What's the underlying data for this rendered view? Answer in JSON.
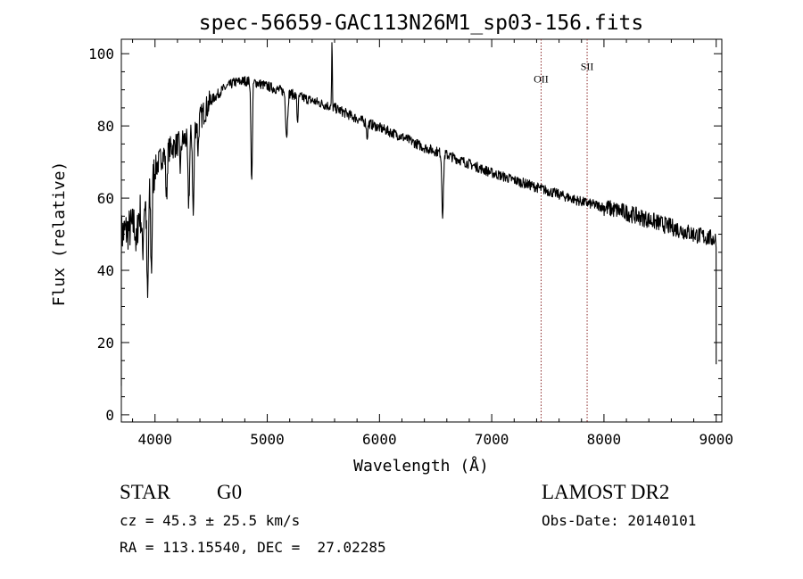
{
  "chart_data": {
    "type": "line",
    "title": "spec-56659-GAC113N26M1_sp03-156.fits",
    "xlabel": "Wavelength (Å)",
    "ylabel": "Flux (relative)",
    "xlim": [
      3700,
      9050
    ],
    "ylim": [
      -2,
      104
    ],
    "xticks": [
      4000,
      5000,
      6000,
      7000,
      8000,
      9000
    ],
    "yticks": [
      0,
      20,
      40,
      60,
      80,
      100
    ],
    "grid": false,
    "line_color": "#000000",
    "marker_color": "#8b2a2a",
    "continuum": {
      "x": [
        3700,
        3750,
        3800,
        3850,
        3900,
        3950,
        4000,
        4050,
        4100,
        4150,
        4200,
        4300,
        4400,
        4500,
        4600,
        4700,
        4800,
        4900,
        5000,
        5100,
        5200,
        5300,
        5400,
        5500,
        5600,
        5800,
        6000,
        6200,
        6400,
        6600,
        6800,
        7000,
        7200,
        7400,
        7600,
        7800,
        8000,
        8200,
        8400,
        8600,
        8800,
        9000
      ],
      "y": [
        50,
        51,
        52,
        55,
        58,
        62,
        68,
        71,
        73,
        74,
        75,
        77,
        82,
        87,
        90,
        92,
        92.5,
        92,
        91,
        90,
        89,
        88,
        87,
        86,
        85,
        82,
        79.5,
        77,
        74,
        72,
        69.5,
        67,
        65,
        63,
        61,
        59,
        57.5,
        56,
        54,
        52,
        50,
        48.5
      ]
    },
    "absorption_lines": [
      {
        "x": 3835,
        "depth": 8,
        "width": 10
      },
      {
        "x": 3889,
        "depth": 12,
        "width": 10
      },
      {
        "x": 3934,
        "depth": 30,
        "width": 10
      },
      {
        "x": 3968,
        "depth": 24,
        "width": 9
      },
      {
        "x": 4102,
        "depth": 13,
        "width": 9
      },
      {
        "x": 4226,
        "depth": 7,
        "width": 8
      },
      {
        "x": 4300,
        "depth": 18,
        "width": 11
      },
      {
        "x": 4341,
        "depth": 24,
        "width": 9
      },
      {
        "x": 4384,
        "depth": 8,
        "width": 7
      },
      {
        "x": 4861,
        "depth": 28,
        "width": 9
      },
      {
        "x": 5173,
        "depth": 12,
        "width": 12
      },
      {
        "x": 5270,
        "depth": 7,
        "width": 8
      },
      {
        "x": 5890,
        "depth": 4,
        "width": 8
      },
      {
        "x": 6563,
        "depth": 17,
        "width": 10
      }
    ],
    "emission_lines": [
      {
        "x": 5577,
        "height": 19,
        "width": 4
      }
    ],
    "line_markers": [
      {
        "label": "OII",
        "x": 7440,
        "label_y": 92
      },
      {
        "label": "SII",
        "x": 7850,
        "label_y": 95.5
      }
    ]
  },
  "info": {
    "object_class": "STAR",
    "subclass": "G0",
    "survey": "LAMOST DR2",
    "redshift": "cz = 45.3 ± 25.5 km/s",
    "obs_date": "Obs-Date: 20140101",
    "coordinates": "RA = 113.15540, DEC =  27.02285"
  }
}
